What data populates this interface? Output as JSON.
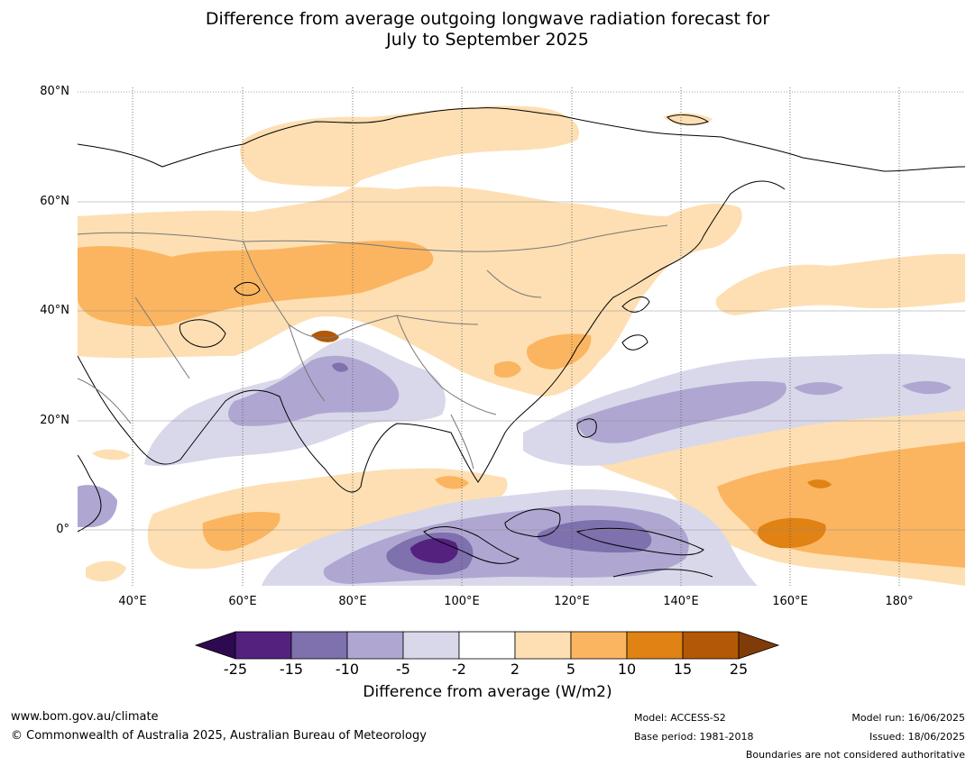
{
  "title": {
    "line1": "Difference from average outgoing longwave radiation forecast for",
    "line2": "July to September 2025"
  },
  "map": {
    "lon_range": [
      30,
      192
    ],
    "lat_range": [
      -10,
      81
    ],
    "lat_labels": [
      "80°N",
      "60°N",
      "40°N",
      "20°N",
      "0°"
    ],
    "lon_labels": [
      "40°E",
      "60°E",
      "80°E",
      "100°E",
      "120°E",
      "140°E",
      "160°E",
      "180°"
    ]
  },
  "colorbar": {
    "title": "Difference from average (W/m2)",
    "tick_labels": [
      "-25",
      "-15",
      "-10",
      "-5",
      "-2",
      "2",
      "5",
      "10",
      "15",
      "25"
    ],
    "colors": [
      "#2d0a4f",
      "#54217f",
      "#7f70ae",
      "#afa7d2",
      "#d9d8ea",
      "#ffffff",
      "#fddfb3",
      "#fbb560",
      "#e08214",
      "#b35806",
      "#7f3b08"
    ]
  },
  "footer": {
    "website": "www.bom.gov.au/climate",
    "copyright": "© Commonwealth of Australia 2025, Australian Bureau of Meteorology",
    "model": "Model: ACCESS-S2",
    "base_period": "Base period: 1981-2018",
    "model_run": "Model run: 16/06/2025",
    "issued": "Issued: 18/06/2025",
    "disclaimer": "Boundaries are not considered authoritative"
  }
}
